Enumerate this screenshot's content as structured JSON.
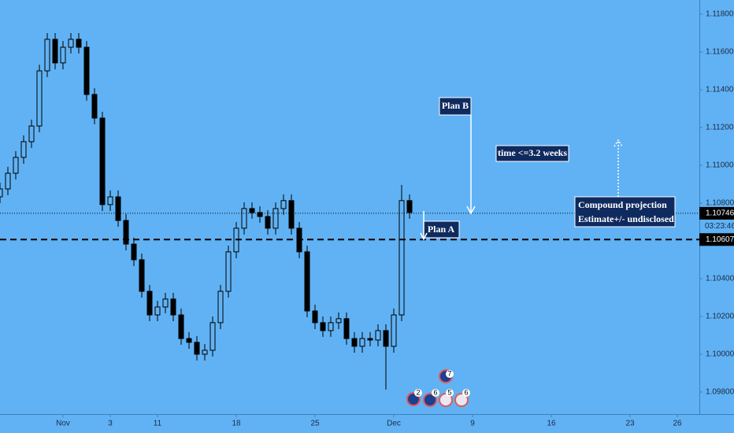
{
  "chart_data": {
    "type": "candlestick",
    "x": [
      -4,
      -3.5,
      -3,
      -2.5,
      -2,
      -1.5,
      -1,
      -0.5,
      0,
      0.5,
      1,
      1.5,
      2,
      2.5,
      3,
      3.5,
      4,
      4.5,
      5,
      5.5,
      6,
      6.5,
      7,
      7.5,
      8,
      8.5,
      9,
      9.5,
      10,
      10.5,
      11,
      11.5,
      12,
      12.5,
      13,
      13.5,
      14,
      14.5,
      15,
      15.5,
      16,
      16.5,
      17,
      17.5,
      18,
      18.5,
      19,
      19.5,
      20,
      20.5,
      21,
      21.5,
      22
    ],
    "open": [
      1.10833,
      1.10875,
      1.10958,
      1.11042,
      1.11125,
      1.11208,
      1.115,
      1.11667,
      1.11542,
      1.11625,
      1.11667,
      1.11625,
      1.11375,
      1.1125,
      1.10792,
      1.10833,
      1.10708,
      1.10583,
      1.105,
      1.10333,
      1.10208,
      1.1025,
      1.10292,
      1.10208,
      1.10083,
      1.10063,
      1.1,
      1.10021,
      1.10167,
      1.10333,
      1.10542,
      1.10667,
      1.10771,
      1.1075,
      1.10729,
      1.10667,
      1.10771,
      1.10813,
      1.10667,
      1.10542,
      1.10229,
      1.10167,
      1.10125,
      1.10167,
      1.10188,
      1.10083,
      1.10042,
      1.10083,
      1.10075,
      1.10125,
      1.10042,
      1.10208,
      1.10813
    ],
    "high": [
      1.10908,
      1.10992,
      1.11075,
      1.11158,
      1.11242,
      1.11533,
      1.117,
      1.117,
      1.11658,
      1.117,
      1.117,
      1.11658,
      1.11408,
      1.11283,
      1.10867,
      1.10867,
      1.10742,
      1.10617,
      1.10533,
      1.10367,
      1.10283,
      1.10325,
      1.10325,
      1.10242,
      1.10117,
      1.10096,
      1.10054,
      1.102,
      1.10367,
      1.10575,
      1.107,
      1.10804,
      1.10804,
      1.10783,
      1.10763,
      1.10804,
      1.10846,
      1.10846,
      1.107,
      1.10575,
      1.10263,
      1.102,
      1.102,
      1.10221,
      1.10221,
      1.10117,
      1.10117,
      1.10117,
      1.10158,
      1.10158,
      1.10242,
      1.10896,
      1.10846
    ],
    "low": [
      1.108,
      1.10842,
      1.10925,
      1.11008,
      1.11092,
      1.11175,
      1.11467,
      1.11508,
      1.11508,
      1.11592,
      1.11592,
      1.11342,
      1.11217,
      1.10758,
      1.10758,
      1.10675,
      1.1055,
      1.10467,
      1.103,
      1.10175,
      1.10175,
      1.10217,
      1.10175,
      1.1005,
      1.10029,
      1.09967,
      1.09967,
      1.09988,
      1.10133,
      1.103,
      1.10508,
      1.10633,
      1.10717,
      1.10696,
      1.10633,
      1.10633,
      1.10738,
      1.10633,
      1.10508,
      1.10196,
      1.10133,
      1.10092,
      1.10092,
      1.10133,
      1.1005,
      1.10008,
      1.10008,
      1.10042,
      1.10042,
      1.09813,
      1.10008,
      1.10175,
      1.10717
    ],
    "close": [
      1.10875,
      1.10958,
      1.11042,
      1.11125,
      1.11208,
      1.115,
      1.11667,
      1.11542,
      1.11625,
      1.11667,
      1.11625,
      1.11375,
      1.1125,
      1.10792,
      1.10833,
      1.10708,
      1.10583,
      1.105,
      1.10333,
      1.10208,
      1.1025,
      1.10292,
      1.10208,
      1.10083,
      1.10063,
      1.1,
      1.10021,
      1.10167,
      1.10333,
      1.10542,
      1.10667,
      1.10771,
      1.1075,
      1.10729,
      1.10667,
      1.10771,
      1.10813,
      1.10667,
      1.10542,
      1.10229,
      1.10167,
      1.10125,
      1.10167,
      1.10188,
      1.10083,
      1.10042,
      1.10083,
      1.10075,
      1.10125,
      1.10042,
      1.10208,
      1.10813,
      1.1075
    ],
    "up_color": "#60b2f4",
    "down_color": "#000000",
    "xlim": [
      -4,
      40.4
    ],
    "xticks": [
      {
        "value": 0,
        "label": "Nov"
      },
      3,
      {
        "value": 6,
        "label": "11"
      },
      {
        "value": 11,
        "label": "18"
      },
      {
        "value": 16,
        "label": "25"
      },
      {
        "value": 21,
        "label": "Dec"
      },
      {
        "value": 26,
        "label": "9"
      },
      {
        "value": 31,
        "label": "16"
      },
      {
        "value": 36,
        "label": "23"
      },
      {
        "value": 39,
        "label": "26"
      }
    ],
    "ylim": [
      1.09683,
      1.11875
    ],
    "yticks": [
      {
        "value": 1.118,
        "label": "1.11800"
      },
      {
        "value": 1.116,
        "label": "1.11600"
      },
      {
        "value": 1.114,
        "label": "1.11400"
      },
      {
        "value": 1.112,
        "label": "1.11200"
      },
      {
        "value": 1.11,
        "label": "1.11000"
      },
      {
        "value": 1.108,
        "label": "1.10800"
      },
      {
        "value": 1.104,
        "label": "1.10400"
      },
      {
        "value": 1.102,
        "label": "1.10200"
      },
      {
        "value": 1.1,
        "label": "1.10000"
      },
      {
        "value": 1.098,
        "label": "1.09800"
      }
    ],
    "hlines": [
      {
        "value": 1.10746,
        "style": "dotted"
      },
      {
        "value": 1.10607,
        "style": "dashed"
      }
    ],
    "countdown": "03:23:46",
    "annotations": [
      "Plan B",
      "time <=3.2 weeks",
      "Compound projection",
      "Estimate+/- undisclosed",
      "Plan A"
    ],
    "events": [
      "7",
      "2",
      "6",
      "5",
      "6"
    ]
  }
}
